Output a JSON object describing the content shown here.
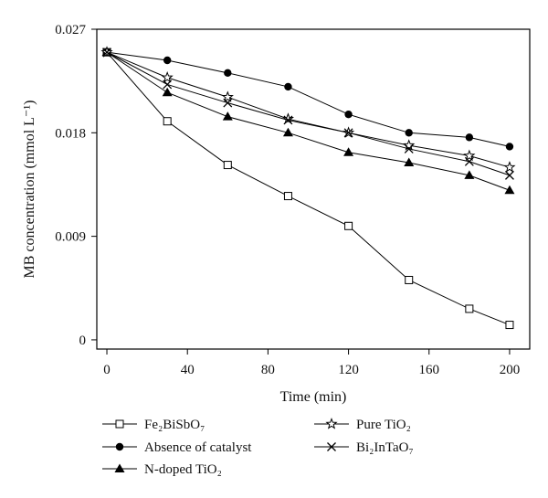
{
  "chart_data": {
    "type": "line",
    "xlabel": "Time (min)",
    "ylabel": "MB concentration (mmol L⁻¹)",
    "xlim": [
      -5,
      210
    ],
    "ylim": [
      -0.0008,
      0.027
    ],
    "xticks": [
      0,
      40,
      80,
      120,
      160,
      200
    ],
    "xtick_labels": [
      "0",
      "40",
      "80",
      "120",
      "160",
      "200"
    ],
    "yticks": [
      0,
      0.009,
      0.018,
      0.027
    ],
    "ytick_labels": [
      "0",
      "0.009",
      "0.018",
      "0.027"
    ],
    "grid": false,
    "legend_position": "bottom",
    "series": [
      {
        "name": "Fe₂BiSbO₇",
        "marker": "open-square",
        "x": [
          0,
          30,
          60,
          90,
          120,
          150,
          180,
          200
        ],
        "values": [
          0.025,
          0.019,
          0.0152,
          0.0125,
          0.0099,
          0.0052,
          0.0027,
          0.0013
        ]
      },
      {
        "name": "Absence of catalyst",
        "marker": "filled-circle",
        "x": [
          0,
          30,
          60,
          90,
          120,
          150,
          180,
          200
        ],
        "values": [
          0.025,
          0.0243,
          0.0232,
          0.022,
          0.0196,
          0.018,
          0.0176,
          0.0168
        ]
      },
      {
        "name": "N-doped TiO₂",
        "marker": "filled-triangle",
        "x": [
          0,
          30,
          60,
          90,
          120,
          150,
          180,
          200
        ],
        "values": [
          0.025,
          0.0215,
          0.0194,
          0.018,
          0.0163,
          0.0154,
          0.0143,
          0.013
        ]
      },
      {
        "name": "Pure TiO₂",
        "marker": "open-star",
        "x": [
          0,
          30,
          60,
          90,
          120,
          150,
          180,
          200
        ],
        "values": [
          0.025,
          0.0228,
          0.0211,
          0.0192,
          0.018,
          0.0169,
          0.016,
          0.015
        ]
      },
      {
        "name": "Bi₂InTaO₇",
        "marker": "x-cross",
        "x": [
          0,
          30,
          60,
          90,
          120,
          150,
          180,
          200
        ],
        "values": [
          0.025,
          0.0222,
          0.0206,
          0.0191,
          0.018,
          0.0166,
          0.0155,
          0.0143
        ]
      }
    ]
  }
}
